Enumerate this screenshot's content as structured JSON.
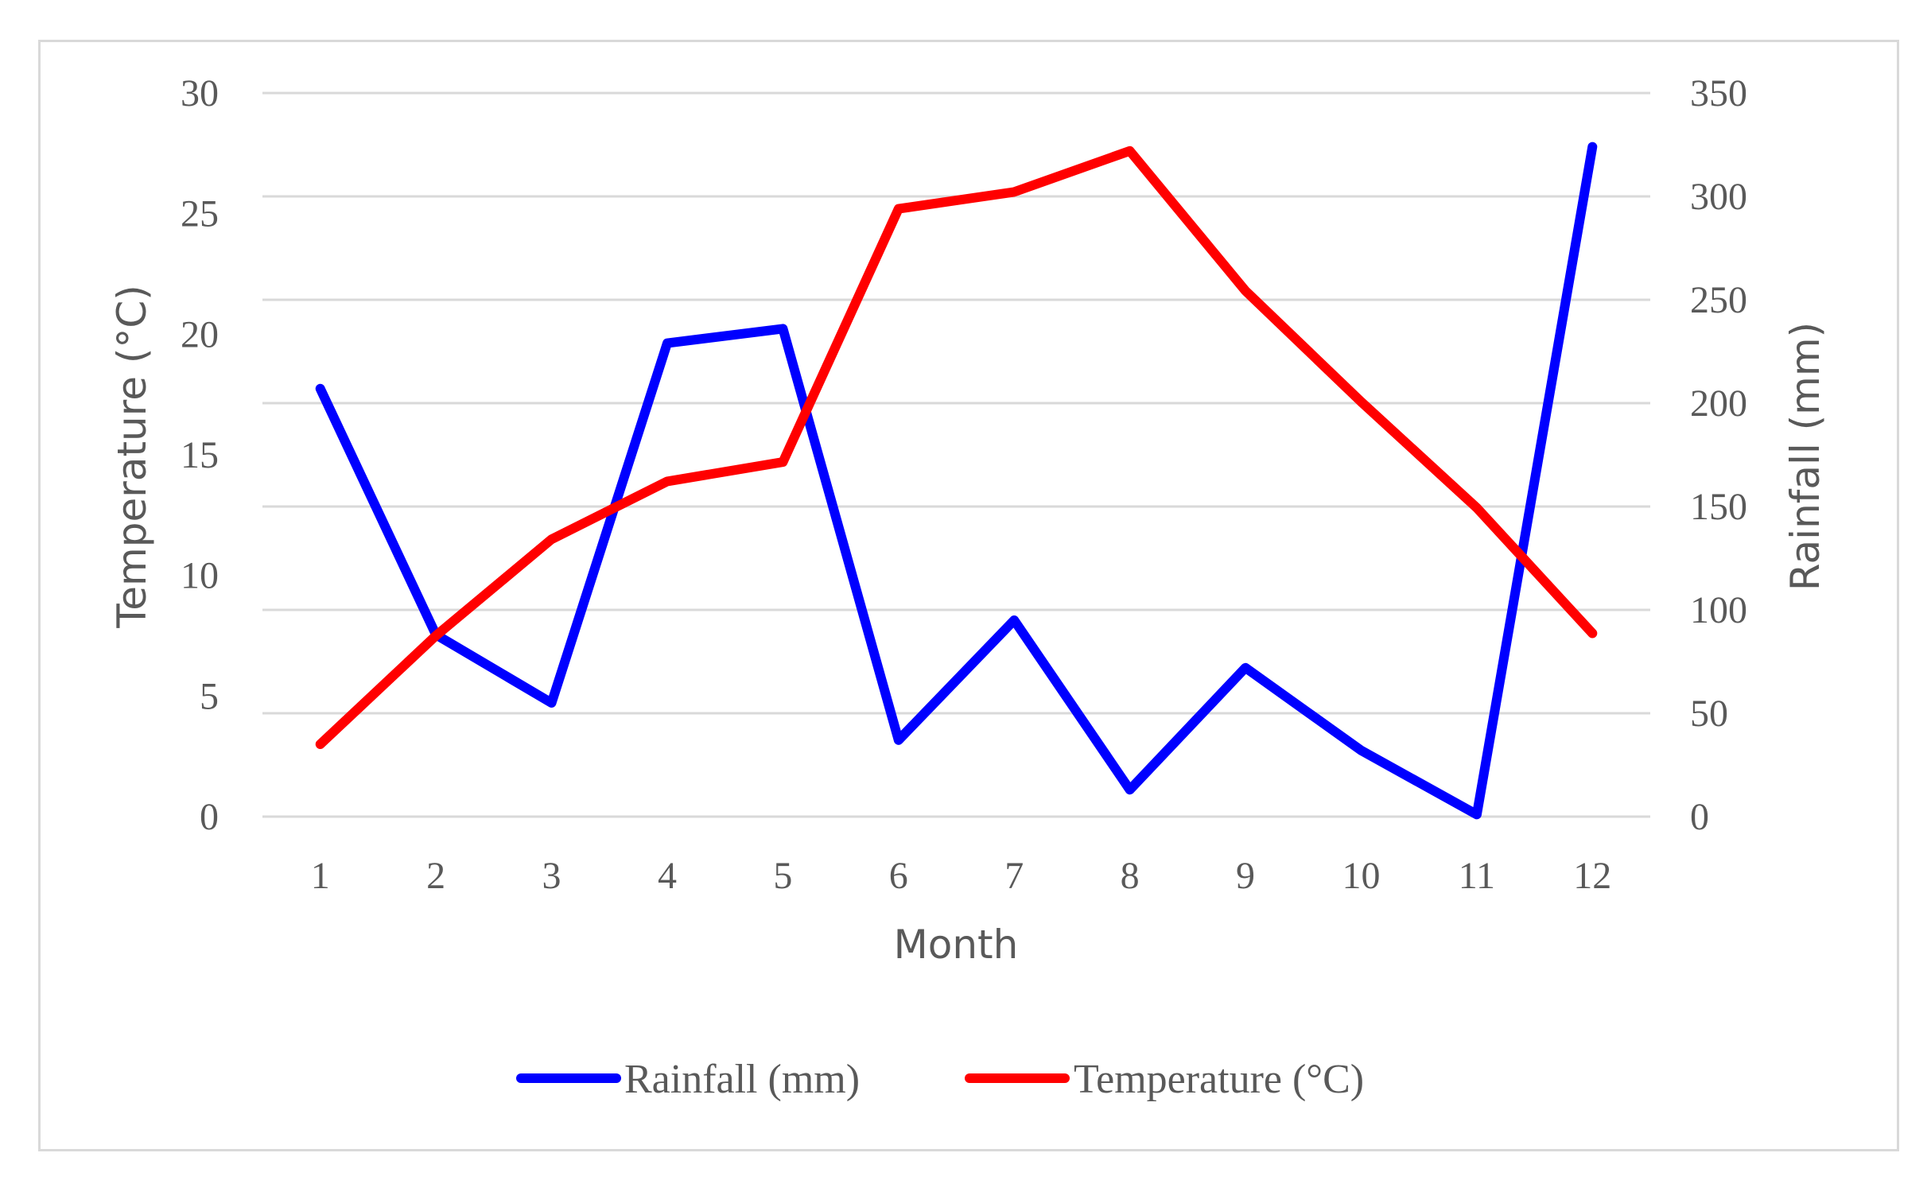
{
  "chart_data": {
    "type": "line",
    "title": "",
    "xlabel": "Month",
    "ylabel_left": "Temperature (°C)",
    "ylabel_right": "Rainfall (mm)",
    "categories": [
      "1",
      "2",
      "3",
      "4",
      "5",
      "6",
      "7",
      "8",
      "9",
      "10",
      "11",
      "12"
    ],
    "ylim_left": [
      0,
      30
    ],
    "ylim_right": [
      0,
      350
    ],
    "yticks_left": [
      "0",
      "5",
      "10",
      "15",
      "20",
      "25",
      "30"
    ],
    "yticks_right": [
      "0",
      "50",
      "100",
      "150",
      "200",
      "250",
      "300",
      "350"
    ],
    "grid": true,
    "legend_position": "bottom",
    "series": [
      {
        "name": "Rainfall (mm)",
        "axis": "right",
        "color": "#0000ff",
        "values": [
          207,
          88,
          55,
          229,
          236,
          37,
          95,
          13,
          72,
          32,
          1,
          324
        ]
      },
      {
        "name": "Temperature (°C)",
        "axis": "left",
        "color": "#ff0000",
        "values": [
          3.0,
          7.5,
          11.5,
          13.9,
          14.7,
          25.2,
          25.9,
          27.6,
          21.8,
          17.2,
          12.8,
          7.6
        ]
      }
    ]
  }
}
